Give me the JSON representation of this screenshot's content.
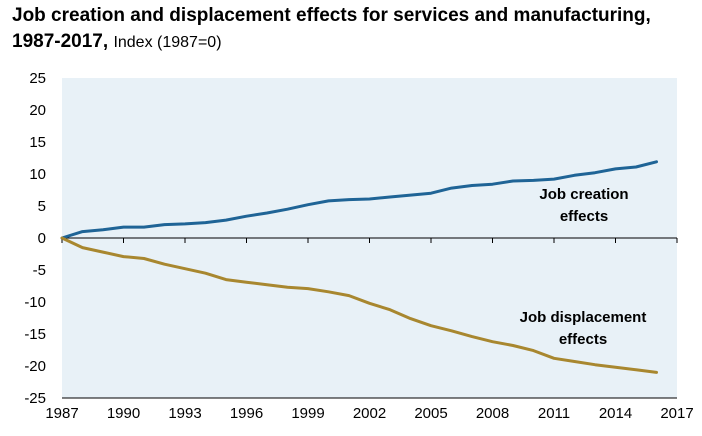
{
  "chart_data": {
    "type": "line",
    "title": "Job creation and displacement effects for services and manufacturing, 1987-2017,",
    "subtitle": "Index (1987=0)",
    "xlabel": "",
    "ylabel": "",
    "xlim": [
      1987,
      2017
    ],
    "ylim": [
      -25,
      25
    ],
    "x_ticks": [
      "1987",
      "1990",
      "1993",
      "1996",
      "1999",
      "2002",
      "2005",
      "2008",
      "2011",
      "2014",
      "2017"
    ],
    "y_ticks": [
      "25",
      "20",
      "15",
      "10",
      "5",
      "0",
      "-5",
      "-10",
      "-15",
      "-20",
      "-25"
    ],
    "grid": false,
    "background_color": "#e8f1f7",
    "series": [
      {
        "annotation": [
          "Job creation",
          "effects"
        ],
        "color": "#1f6496",
        "x": [
          1987,
          1988,
          1989,
          1990,
          1991,
          1992,
          1993,
          1994,
          1995,
          1996,
          1997,
          1998,
          1999,
          2000,
          2001,
          2002,
          2003,
          2004,
          2005,
          2006,
          2007,
          2008,
          2009,
          2010,
          2011,
          2012,
          2013,
          2014,
          2015,
          2016
        ],
        "values": [
          0,
          1.0,
          1.3,
          1.7,
          1.7,
          2.1,
          2.2,
          2.4,
          2.8,
          3.4,
          3.9,
          4.5,
          5.2,
          5.8,
          6.0,
          6.1,
          6.4,
          6.7,
          7.0,
          7.8,
          8.2,
          8.4,
          8.9,
          9.0,
          9.2,
          9.8,
          10.2,
          10.8,
          11.1,
          11.9
        ]
      },
      {
        "annotation": [
          "Job displacement",
          "effects"
        ],
        "color": "#a8872f",
        "x": [
          1987,
          1988,
          1989,
          1990,
          1991,
          1992,
          1993,
          1994,
          1995,
          1996,
          1997,
          1998,
          1999,
          2000,
          2001,
          2002,
          2003,
          2004,
          2005,
          2006,
          2007,
          2008,
          2009,
          2010,
          2011,
          2012,
          2013,
          2014,
          2015,
          2016
        ],
        "values": [
          0,
          -1.5,
          -2.2,
          -2.9,
          -3.2,
          -4.1,
          -4.8,
          -5.5,
          -6.5,
          -6.9,
          -7.3,
          -7.7,
          -7.9,
          -8.4,
          -9.0,
          -10.2,
          -11.2,
          -12.6,
          -13.7,
          -14.5,
          -15.4,
          -16.2,
          -16.8,
          -17.6,
          -18.8,
          -19.3,
          -19.8,
          -20.2,
          -20.6,
          -21.0
        ]
      }
    ]
  }
}
